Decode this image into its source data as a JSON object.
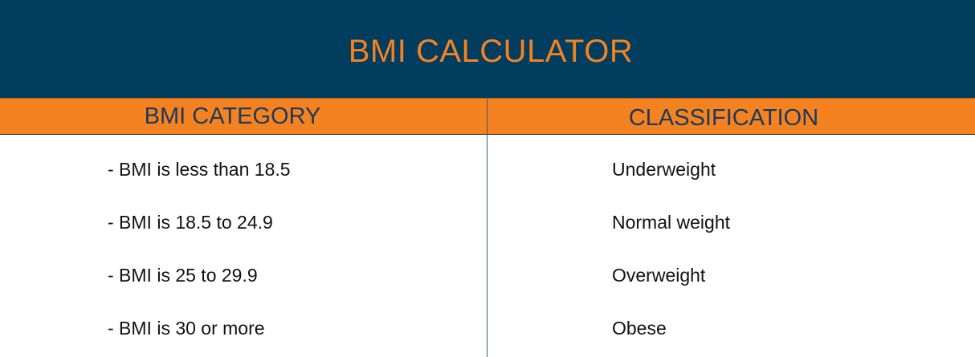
{
  "title": "BMI CALCULATOR",
  "headers": {
    "category": "BMI CATEGORY",
    "classification": "CLASSIFICATION"
  },
  "rows": [
    {
      "category": "- BMI is less than 18.5",
      "classification": "Underweight"
    },
    {
      "category": "- BMI is 18.5 to 24.9",
      "classification": "Normal weight"
    },
    {
      "category": "- BMI is 25 to 29.9",
      "classification": "Overweight"
    },
    {
      "category": "- BMI is 30 or more",
      "classification": "Obese"
    }
  ],
  "colors": {
    "banner": "#003d5e",
    "accent": "#f58220",
    "header_text": "#1b3a5c"
  }
}
